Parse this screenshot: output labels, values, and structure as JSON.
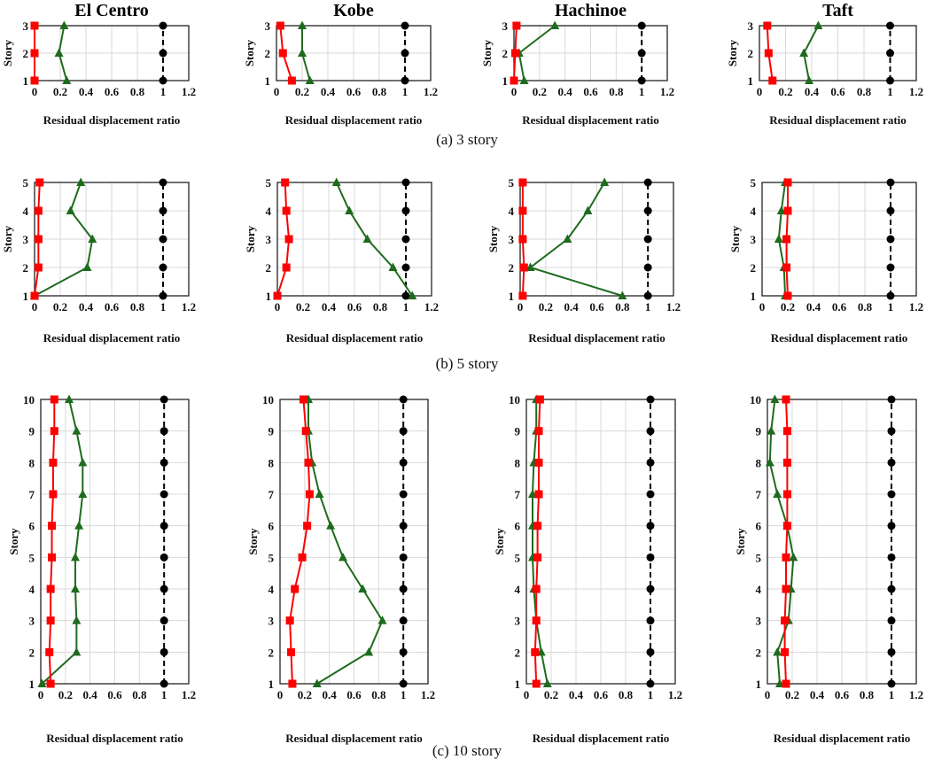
{
  "colors": {
    "reference": "#000000",
    "red_series": "#ff0000",
    "green_series": "#1e6b1e",
    "grid": "#d9d9d9"
  },
  "captions": [
    "(a) 3 story",
    "(b) 5 story",
    "(c) 10 story"
  ],
  "column_titles": [
    "El Centro",
    "Kobe",
    "Hachinoe",
    "Taft"
  ],
  "chart_data": [
    {
      "type": "line",
      "row": 0,
      "col": 0,
      "title": "El Centro",
      "xlabel": "Residual displacement ratio",
      "ylabel": "Story",
      "xlim": [
        0,
        1.2
      ],
      "xticks": [
        0,
        0.2,
        0.4,
        0.6,
        0.8,
        1,
        1.2
      ],
      "y": [
        1,
        2,
        3
      ],
      "grid": true,
      "series": [
        {
          "marker": "circle",
          "color": "#000000",
          "dash": true,
          "values": [
            1,
            1,
            1
          ]
        },
        {
          "marker": "triangle",
          "color": "#1e6b1e",
          "values": [
            0.25,
            0.19,
            0.23
          ]
        },
        {
          "marker": "square",
          "color": "#ff0000",
          "values": [
            0,
            0,
            0
          ]
        }
      ]
    },
    {
      "type": "line",
      "row": 0,
      "col": 1,
      "title": "Kobe",
      "xlabel": "Residual displacement ratio",
      "ylabel": "Story",
      "xlim": [
        0,
        1.2
      ],
      "xticks": [
        0,
        0.2,
        0.4,
        0.6,
        0.8,
        1,
        1.2
      ],
      "y": [
        1,
        2,
        3
      ],
      "grid": true,
      "series": [
        {
          "marker": "circle",
          "color": "#000000",
          "dash": true,
          "values": [
            1,
            1,
            1
          ]
        },
        {
          "marker": "triangle",
          "color": "#1e6b1e",
          "values": [
            0.26,
            0.2,
            0.2
          ]
        },
        {
          "marker": "square",
          "color": "#ff0000",
          "values": [
            0.12,
            0.05,
            0.03
          ]
        }
      ]
    },
    {
      "type": "line",
      "row": 0,
      "col": 2,
      "title": "Hachinoe",
      "xlabel": "Residual displacement ratio",
      "ylabel": "Story",
      "xlim": [
        0,
        1.2
      ],
      "xticks": [
        0,
        0.2,
        0.4,
        0.6,
        0.8,
        1,
        1.2
      ],
      "y": [
        1,
        2,
        3
      ],
      "grid": true,
      "series": [
        {
          "marker": "circle",
          "color": "#000000",
          "dash": true,
          "values": [
            1,
            1,
            1
          ]
        },
        {
          "marker": "triangle",
          "color": "#1e6b1e",
          "values": [
            0.08,
            0.04,
            0.32
          ]
        },
        {
          "marker": "square",
          "color": "#ff0000",
          "values": [
            0,
            0.01,
            0.02
          ]
        }
      ]
    },
    {
      "type": "line",
      "row": 0,
      "col": 3,
      "title": "Taft",
      "xlabel": "Residual displacement ratio",
      "ylabel": "Story",
      "xlim": [
        0,
        1.2
      ],
      "xticks": [
        0,
        0.2,
        0.4,
        0.6,
        0.8,
        1,
        1.2
      ],
      "y": [
        1,
        2,
        3
      ],
      "grid": true,
      "series": [
        {
          "marker": "circle",
          "color": "#000000",
          "dash": true,
          "values": [
            1,
            1,
            1
          ]
        },
        {
          "marker": "triangle",
          "color": "#1e6b1e",
          "values": [
            0.38,
            0.34,
            0.45
          ]
        },
        {
          "marker": "square",
          "color": "#ff0000",
          "values": [
            0.1,
            0.07,
            0.06
          ]
        }
      ]
    },
    {
      "type": "line",
      "row": 1,
      "col": 0,
      "title": "",
      "xlabel": "Residual displacement ratio",
      "ylabel": "Story",
      "xlim": [
        0,
        1.2
      ],
      "xticks": [
        0,
        0.2,
        0.4,
        0.6,
        0.8,
        1,
        1.2
      ],
      "y": [
        1,
        2,
        3,
        4,
        5
      ],
      "grid": true,
      "series": [
        {
          "marker": "circle",
          "color": "#000000",
          "dash": true,
          "values": [
            1,
            1,
            1,
            1,
            1
          ]
        },
        {
          "marker": "triangle",
          "color": "#1e6b1e",
          "values": [
            0,
            0.41,
            0.45,
            0.28,
            0.36
          ]
        },
        {
          "marker": "square",
          "color": "#ff0000",
          "values": [
            0,
            0.03,
            0.03,
            0.03,
            0.04
          ]
        }
      ]
    },
    {
      "type": "line",
      "row": 1,
      "col": 1,
      "title": "",
      "xlabel": "Residual displacement ratio",
      "ylabel": "Story",
      "xlim": [
        0,
        1.2
      ],
      "xticks": [
        0,
        0.2,
        0.4,
        0.6,
        0.8,
        1,
        1.2
      ],
      "y": [
        1,
        2,
        3,
        4,
        5
      ],
      "grid": true,
      "series": [
        {
          "marker": "circle",
          "color": "#000000",
          "dash": true,
          "values": [
            1,
            1,
            1,
            1,
            1
          ]
        },
        {
          "marker": "triangle",
          "color": "#1e6b1e",
          "values": [
            1.05,
            0.9,
            0.7,
            0.56,
            0.46
          ]
        },
        {
          "marker": "square",
          "color": "#ff0000",
          "values": [
            0,
            0.07,
            0.09,
            0.07,
            0.06
          ]
        }
      ]
    },
    {
      "type": "line",
      "row": 1,
      "col": 2,
      "title": "",
      "xlabel": "Residual displacement ratio",
      "ylabel": "Story",
      "xlim": [
        0,
        1.2
      ],
      "xticks": [
        0,
        0.2,
        0.4,
        0.6,
        0.8,
        1,
        1.2
      ],
      "y": [
        1,
        2,
        3,
        4,
        5
      ],
      "grid": true,
      "series": [
        {
          "marker": "circle",
          "color": "#000000",
          "dash": true,
          "values": [
            1,
            1,
            1,
            1,
            1
          ]
        },
        {
          "marker": "triangle",
          "color": "#1e6b1e",
          "values": [
            0.8,
            0.08,
            0.37,
            0.53,
            0.66
          ]
        },
        {
          "marker": "square",
          "color": "#ff0000",
          "values": [
            0.02,
            0.03,
            0.02,
            0.02,
            0.02
          ]
        }
      ]
    },
    {
      "type": "line",
      "row": 1,
      "col": 3,
      "title": "",
      "xlabel": "Residual displacement ratio",
      "ylabel": "Story",
      "xlim": [
        0,
        1.2
      ],
      "xticks": [
        0,
        0.2,
        0.4,
        0.6,
        0.8,
        1,
        1.2
      ],
      "y": [
        1,
        2,
        3,
        4,
        5
      ],
      "grid": true,
      "series": [
        {
          "marker": "circle",
          "color": "#000000",
          "dash": true,
          "values": [
            1,
            1,
            1,
            1,
            1
          ]
        },
        {
          "marker": "triangle",
          "color": "#1e6b1e",
          "values": [
            0.18,
            0.17,
            0.13,
            0.15,
            0.18
          ]
        },
        {
          "marker": "square",
          "color": "#ff0000",
          "values": [
            0.2,
            0.19,
            0.19,
            0.2,
            0.2
          ]
        }
      ]
    },
    {
      "type": "line",
      "row": 2,
      "col": 0,
      "title": "",
      "xlabel": "Residual displacement ratio",
      "ylabel": "Story",
      "xlim": [
        0,
        1.2
      ],
      "xticks": [
        0,
        0.2,
        0.4,
        0.6,
        0.8,
        1,
        1.2
      ],
      "y": [
        1,
        2,
        3,
        4,
        5,
        6,
        7,
        8,
        9,
        10
      ],
      "grid": true,
      "series": [
        {
          "marker": "circle",
          "color": "#000000",
          "dash": true,
          "values": [
            1,
            1,
            1,
            1,
            1,
            1,
            1,
            1,
            1,
            1
          ]
        },
        {
          "marker": "triangle",
          "color": "#1e6b1e",
          "values": [
            0.01,
            0.29,
            0.29,
            0.28,
            0.28,
            0.31,
            0.34,
            0.34,
            0.29,
            0.23
          ]
        },
        {
          "marker": "square",
          "color": "#ff0000",
          "values": [
            0.08,
            0.07,
            0.08,
            0.08,
            0.09,
            0.09,
            0.1,
            0.1,
            0.11,
            0.11
          ]
        }
      ]
    },
    {
      "type": "line",
      "row": 2,
      "col": 1,
      "title": "",
      "xlabel": "Residual displacement ratio",
      "ylabel": "Story",
      "xlim": [
        0,
        1.2
      ],
      "xticks": [
        0,
        0.2,
        0.4,
        0.6,
        0.8,
        1,
        1.2
      ],
      "y": [
        1,
        2,
        3,
        4,
        5,
        6,
        7,
        8,
        9,
        10
      ],
      "grid": true,
      "series": [
        {
          "marker": "circle",
          "color": "#000000",
          "dash": true,
          "values": [
            1,
            1,
            1,
            1,
            1,
            1,
            1,
            1,
            1,
            1
          ]
        },
        {
          "marker": "triangle",
          "color": "#1e6b1e",
          "values": [
            0.3,
            0.72,
            0.83,
            0.67,
            0.51,
            0.41,
            0.32,
            0.26,
            0.23,
            0.23
          ]
        },
        {
          "marker": "square",
          "color": "#ff0000",
          "values": [
            0.1,
            0.09,
            0.08,
            0.12,
            0.18,
            0.22,
            0.24,
            0.23,
            0.21,
            0.19
          ]
        }
      ]
    },
    {
      "type": "line",
      "row": 2,
      "col": 2,
      "title": "",
      "xlabel": "Residual displacement ratio",
      "ylabel": "Story",
      "xlim": [
        0,
        1.2
      ],
      "xticks": [
        0,
        0.2,
        0.4,
        0.6,
        0.8,
        1,
        1.2
      ],
      "y": [
        1,
        2,
        3,
        4,
        5,
        6,
        7,
        8,
        9,
        10
      ],
      "grid": true,
      "series": [
        {
          "marker": "circle",
          "color": "#000000",
          "dash": true,
          "values": [
            1,
            1,
            1,
            1,
            1,
            1,
            1,
            1,
            1,
            1
          ]
        },
        {
          "marker": "triangle",
          "color": "#1e6b1e",
          "values": [
            0.17,
            0.12,
            0.08,
            0.06,
            0.05,
            0.05,
            0.05,
            0.06,
            0.08,
            0.08
          ]
        },
        {
          "marker": "square",
          "color": "#ff0000",
          "values": [
            0.08,
            0.07,
            0.08,
            0.08,
            0.09,
            0.09,
            0.1,
            0.1,
            0.1,
            0.11
          ]
        }
      ]
    },
    {
      "type": "line",
      "row": 2,
      "col": 3,
      "title": "",
      "xlabel": "Residual displacement ratio",
      "ylabel": "Story",
      "xlim": [
        0,
        1.2
      ],
      "xticks": [
        0,
        0.2,
        0.4,
        0.6,
        0.8,
        1,
        1.2
      ],
      "y": [
        1,
        2,
        3,
        4,
        5,
        6,
        7,
        8,
        9,
        10
      ],
      "grid": true,
      "series": [
        {
          "marker": "circle",
          "color": "#000000",
          "dash": true,
          "values": [
            1,
            1,
            1,
            1,
            1,
            1,
            1,
            1,
            1,
            1
          ]
        },
        {
          "marker": "triangle",
          "color": "#1e6b1e",
          "values": [
            0.1,
            0.08,
            0.17,
            0.19,
            0.21,
            0.16,
            0.08,
            0.02,
            0.03,
            0.06
          ]
        },
        {
          "marker": "square",
          "color": "#ff0000",
          "values": [
            0.15,
            0.14,
            0.14,
            0.15,
            0.15,
            0.16,
            0.16,
            0.16,
            0.16,
            0.15
          ]
        }
      ]
    }
  ]
}
